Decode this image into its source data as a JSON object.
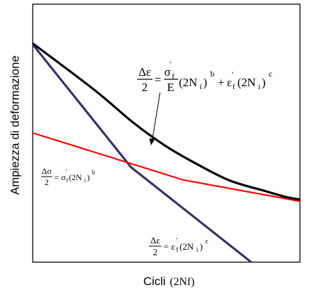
{
  "chart_data": {
    "type": "line",
    "title": "",
    "xlabel": "Cicli",
    "xlabel_unit": "(2Nf)",
    "ylabel": "Ampiezza di deformazione",
    "grid": false,
    "x_ticks_shown": false,
    "y_ticks_shown": false,
    "xlim": [
      0,
      100
    ],
    "ylim": [
      0,
      100
    ],
    "scale_note": "log-log, unlabeled",
    "colors": {
      "total": "#000000",
      "elastic": "#ff0000",
      "plastic": "#333366",
      "axes": "#000000",
      "text": "#000000"
    },
    "series": [
      {
        "key": "plastic",
        "x": [
          0,
          36.8,
          83
        ],
        "y": [
          84.4,
          36.8,
          -1
        ]
      },
      {
        "key": "elastic",
        "x": [
          0,
          56.3,
          100
        ],
        "y": [
          50.1,
          31.9,
          23.6
        ]
      },
      {
        "key": "total",
        "x": [
          0,
          22.9,
          37.6,
          49.5,
          60.6,
          73.6,
          86.9,
          94.3,
          100
        ],
        "y": [
          84.8,
          66.9,
          54.1,
          45.2,
          38.5,
          31.7,
          27.6,
          25.4,
          24.3
        ]
      }
    ]
  },
  "formulas": {
    "total": {
      "lhs_num": "Δε",
      "lhs_den": "2",
      "eq": "=",
      "sf": "σ",
      "sf_sub": "f",
      "prime": "'",
      "E": "E",
      "pow_base": "(2N",
      "pow_sub": "i",
      "pow_close": ")",
      "exp_b": "b",
      "plus": "+",
      "ef": "ε",
      "ef_sub": "f",
      "exp_c": "c"
    },
    "elastic": {
      "lhs_num": "Δσ",
      "lhs_den": "2",
      "eq": "=",
      "s": "σ",
      "s_sub": "f",
      "prime": "'",
      "pow_base": "(2N",
      "pow_sub": "i",
      "pow_close": ")",
      "exp": "b"
    },
    "plastic": {
      "lhs_num": "Δε",
      "lhs_den": "2",
      "eq": "=",
      "e": "ε",
      "e_sub": "f",
      "prime": "'",
      "pow_base": "(2N",
      "pow_sub": "i",
      "pow_close": ")",
      "exp": "c"
    }
  }
}
